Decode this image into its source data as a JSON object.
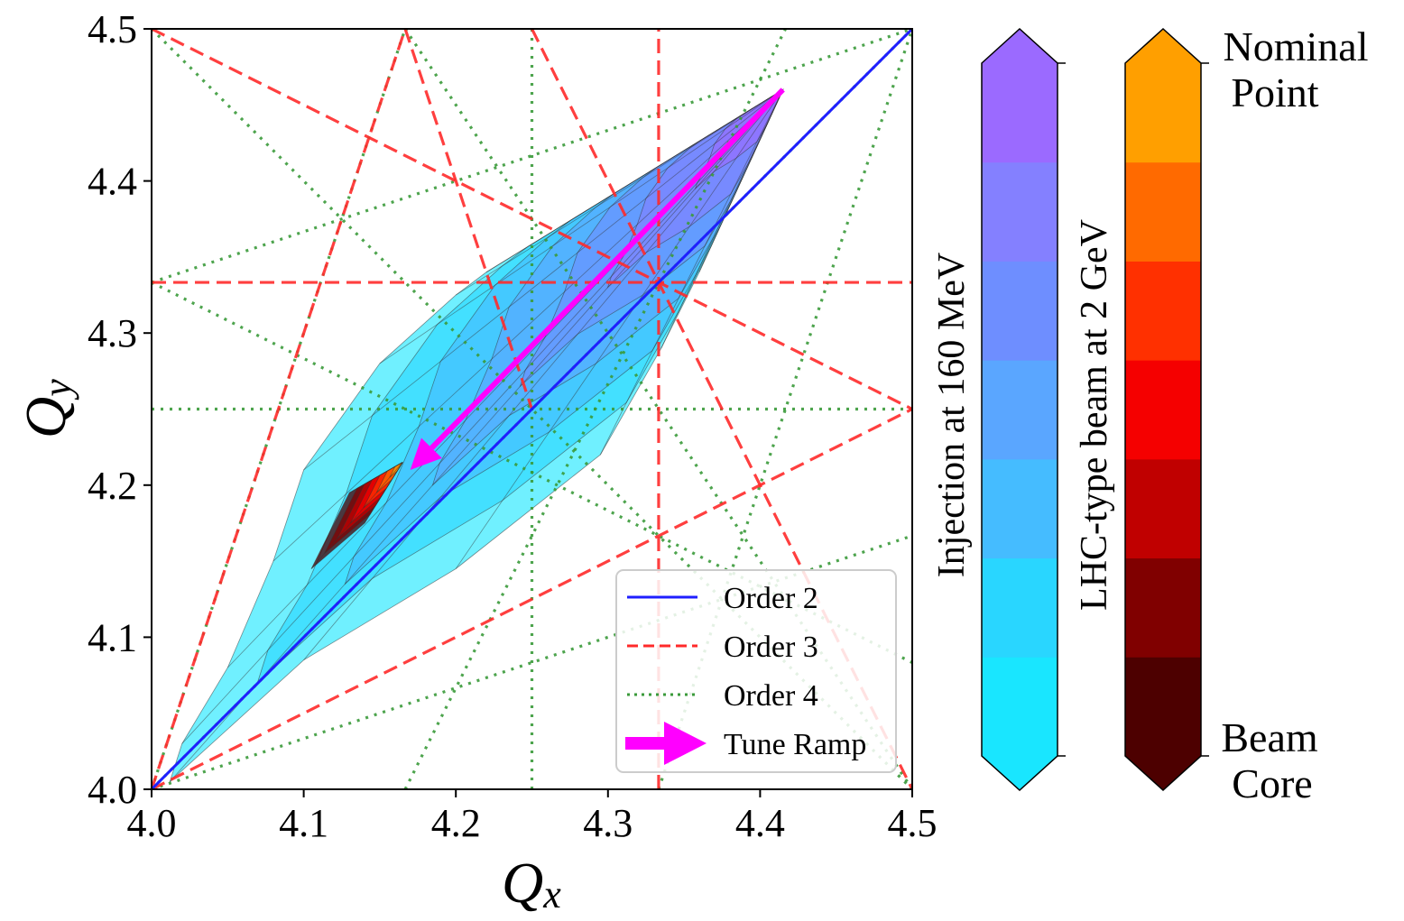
{
  "chart_data": {
    "type": "scatter",
    "xlabel": "Q",
    "xlabel_sub": "x",
    "ylabel": "Q",
    "ylabel_sub": "y",
    "xlim": [
      4.0,
      4.5
    ],
    "ylim": [
      4.0,
      4.5
    ],
    "grid": false,
    "legend_position": "bottom-right",
    "xticks": [
      "4.0",
      "4.1",
      "4.2",
      "4.3",
      "4.4",
      "4.5"
    ],
    "yticks": [
      "4.0",
      "4.1",
      "4.2",
      "4.3",
      "4.4",
      "4.5"
    ],
    "xtick_values": [
      4.0,
      4.1,
      4.2,
      4.3,
      4.4,
      4.5
    ],
    "ytick_values": [
      4.0,
      4.1,
      4.2,
      4.3,
      4.4,
      4.5
    ],
    "legend": [
      {
        "label": "Order 2",
        "color": "#1f1fff",
        "style": "solid"
      },
      {
        "label": "Order 3",
        "color": "#ff2a2a",
        "style": "dashed"
      },
      {
        "label": "Order 4",
        "color": "#3a9a3a",
        "style": "dotted"
      },
      {
        "label": "Tune Ramp",
        "color": "#ff00ff",
        "style": "arrow"
      }
    ],
    "resonance_lines": {
      "order2": [
        [
          [
            4.0,
            4.0
          ],
          [
            4.5,
            4.5
          ]
        ]
      ],
      "order3": [
        [
          [
            4.0,
            4.0
          ],
          [
            4.1667,
            4.5
          ]
        ],
        [
          [
            4.1667,
            4.5
          ],
          [
            4.25,
            4.25
          ]
        ],
        [
          [
            4.0,
            4.5
          ],
          [
            4.5,
            4.25
          ]
        ],
        [
          [
            4.0,
            4.0
          ],
          [
            4.5,
            4.25
          ]
        ],
        [
          [
            4.25,
            4.5
          ],
          [
            4.5,
            4.0
          ]
        ],
        [
          [
            4.3333,
            4.0
          ],
          [
            4.3333,
            4.5
          ]
        ],
        [
          [
            4.0,
            4.3333
          ],
          [
            4.5,
            4.3333
          ]
        ]
      ],
      "order4": [
        [
          [
            4.0,
            4.0
          ],
          [
            4.1667,
            4.5
          ]
        ],
        [
          [
            4.0,
            4.0
          ],
          [
            4.5,
            4.1667
          ]
        ],
        [
          [
            4.25,
            4.0
          ],
          [
            4.25,
            4.5
          ]
        ],
        [
          [
            4.0,
            4.25
          ],
          [
            4.5,
            4.25
          ]
        ],
        [
          [
            4.0,
            4.5
          ],
          [
            4.5,
            4.0
          ]
        ],
        [
          [
            4.0,
            4.3333
          ],
          [
            4.5,
            4.5
          ]
        ],
        [
          [
            4.1667,
            4.5
          ],
          [
            4.5,
            4.0
          ]
        ],
        [
          [
            4.0,
            4.3333
          ],
          [
            4.5,
            4.0833
          ]
        ],
        [
          [
            4.0,
            4.0
          ],
          [
            4.5,
            4.5
          ]
        ],
        [
          [
            4.3333,
            4.0
          ],
          [
            4.5,
            4.5
          ]
        ],
        [
          [
            4.1667,
            4.0
          ],
          [
            4.4167,
            4.5
          ]
        ]
      ]
    },
    "footprints": [
      {
        "name": "Injection at 160 MeV",
        "tip": [
          4.415,
          4.46
        ],
        "outline": [
          [
            4.415,
            4.46
          ],
          [
            4.22,
            4.34
          ],
          [
            4.2,
            4.325
          ],
          [
            4.15,
            4.28
          ],
          [
            4.1,
            4.21
          ],
          [
            4.08,
            4.15
          ],
          [
            4.05,
            4.08
          ],
          [
            4.02,
            4.03
          ],
          [
            4.012,
            4.005
          ],
          [
            4.1,
            4.085
          ],
          [
            4.2,
            4.145
          ],
          [
            4.295,
            4.22
          ],
          [
            4.335,
            4.29
          ],
          [
            4.36,
            4.34
          ]
        ],
        "colors": [
          "#19e6ff",
          "#29d6ff",
          "#45bcff",
          "#5aa6ff",
          "#6e8eff",
          "#8480ff",
          "#9b6aff"
        ]
      },
      {
        "name": "LHC-type beam at 2 GeV",
        "tip": [
          4.165,
          4.215
        ],
        "outline": [
          [
            4.165,
            4.215
          ],
          [
            4.13,
            4.195
          ],
          [
            4.105,
            4.145
          ],
          [
            4.14,
            4.175
          ]
        ],
        "colors": [
          "#4d0000",
          "#800000",
          "#c00000",
          "#f50000",
          "#ff3000",
          "#ff6a00",
          "#ff9f00"
        ]
      }
    ],
    "tune_ramp": {
      "from": [
        4.415,
        4.46
      ],
      "to": [
        4.17,
        4.21
      ],
      "color": "#ff00ff"
    },
    "colorbars": [
      {
        "title": "Injection at 160 MeV",
        "colors": [
          "#19e6ff",
          "#29d6ff",
          "#45bcff",
          "#5aa6ff",
          "#6e8eff",
          "#8480ff",
          "#9b6aff"
        ],
        "top_label": "",
        "bottom_label": ""
      },
      {
        "title": "LHC-type beam at 2 GeV",
        "colors": [
          "#4d0000",
          "#800000",
          "#c00000",
          "#f50000",
          "#ff3000",
          "#ff6a00",
          "#ff9f00"
        ],
        "top_label": [
          "Nominal",
          "Point"
        ],
        "bottom_label": [
          "Beam",
          "Core"
        ]
      }
    ]
  }
}
